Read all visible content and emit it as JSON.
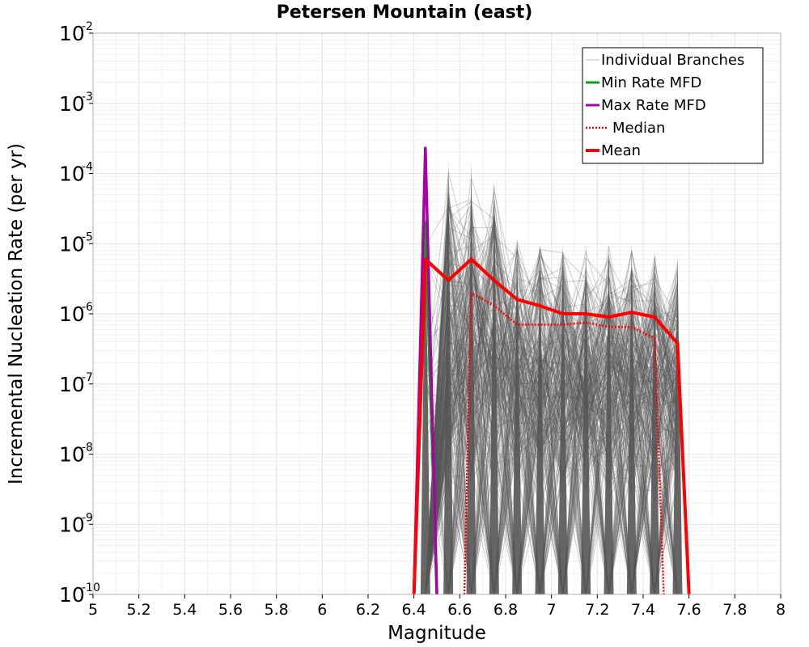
{
  "chart_data": {
    "type": "line",
    "title": "Petersen Mountain (east)",
    "xlabel": "Magnitude",
    "ylabel": "Incremental Nucleation Rate (per yr)",
    "xlim": [
      5,
      8
    ],
    "ylim": [
      1e-10,
      0.01
    ],
    "yscale": "log",
    "grid": true,
    "legend_position": "top-right",
    "x_ticks": [
      "5",
      "5.2",
      "5.4",
      "5.6",
      "5.8",
      "6",
      "6.2",
      "6.4",
      "6.6",
      "6.8",
      "7",
      "7.2",
      "7.4",
      "7.6",
      "7.8",
      "8"
    ],
    "y_ticks": [
      {
        "base": "10",
        "exp": "-10"
      },
      {
        "base": "10",
        "exp": "-9"
      },
      {
        "base": "10",
        "exp": "-8"
      },
      {
        "base": "10",
        "exp": "-7"
      },
      {
        "base": "10",
        "exp": "-6"
      },
      {
        "base": "10",
        "exp": "-5"
      },
      {
        "base": "10",
        "exp": "-4"
      },
      {
        "base": "10",
        "exp": "-3"
      },
      {
        "base": "10",
        "exp": "-2"
      }
    ],
    "series": [
      {
        "name": "Individual Branches",
        "color": "#555555",
        "style": "thin-lines-many",
        "x": [
          6.45,
          6.55,
          6.65,
          6.75,
          6.85,
          6.95,
          7.05,
          7.15,
          7.25,
          7.35,
          7.45,
          7.55
        ],
        "values_upper": [
          3e-05,
          0.00015,
          0.00015,
          8e-05,
          1.2e-05,
          1e-05,
          1e-05,
          1e-05,
          1e-05,
          1e-05,
          8e-06,
          7e-06
        ]
      },
      {
        "name": "Min Rate MFD",
        "color": "#00aa00",
        "style": "solid",
        "x": [
          6.4,
          6.45,
          6.5
        ],
        "values": [
          1e-10,
          2e-05,
          1e-10
        ]
      },
      {
        "name": "Max Rate MFD",
        "color": "#aa00aa",
        "style": "solid",
        "x": [
          6.4,
          6.45,
          6.5
        ],
        "values": [
          1e-10,
          0.00023,
          1e-10
        ]
      },
      {
        "name": "Median",
        "color": "#ff0000",
        "style": "dotted",
        "x": [
          6.62,
          6.65,
          6.75,
          6.85,
          6.95,
          7.05,
          7.15,
          7.25,
          7.35,
          7.45,
          7.49
        ],
        "values": [
          1e-10,
          2e-06,
          1.3e-06,
          7e-07,
          7e-07,
          7e-07,
          7.5e-07,
          6.5e-07,
          6.5e-07,
          4.5e-07,
          1e-10
        ]
      },
      {
        "name": "Mean",
        "color": "#ff0000",
        "style": "thick",
        "x": [
          6.4,
          6.45,
          6.55,
          6.65,
          6.75,
          6.85,
          6.95,
          7.05,
          7.15,
          7.25,
          7.35,
          7.45,
          7.55,
          7.6
        ],
        "values": [
          1e-10,
          6e-06,
          3e-06,
          6e-06,
          3e-06,
          1.6e-06,
          1.3e-06,
          1e-06,
          1e-06,
          9e-07,
          1.05e-06,
          9e-07,
          3.8e-07,
          1e-10
        ]
      }
    ]
  }
}
